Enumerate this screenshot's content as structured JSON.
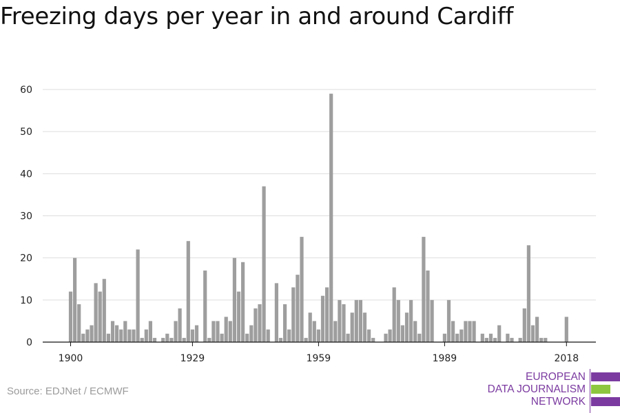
{
  "title": "Freezing days per year in and around Cardiff",
  "source": "Source: EDJNet / ECMWF",
  "logo": {
    "lines": [
      "EUROPEAN",
      "DATA JOURNALISM",
      "NETWORK"
    ],
    "colors": {
      "purple": "#7b3aa0",
      "green": "#8dc63f"
    }
  },
  "colors": {
    "bar": "#9e9e9e",
    "grid": "#dddddd",
    "axis": "#111111",
    "text": "#222222"
  },
  "chart_data": {
    "type": "bar",
    "title": "Freezing days per year in and around Cardiff",
    "xlabel": "",
    "ylabel": "",
    "ylim": [
      0,
      60
    ],
    "yticks": [
      0,
      10,
      20,
      30,
      40,
      50,
      60
    ],
    "xticks": [
      1900,
      1929,
      1959,
      1989,
      2018
    ],
    "grid": true,
    "x": [
      1900,
      1901,
      1902,
      1903,
      1904,
      1905,
      1906,
      1907,
      1908,
      1909,
      1910,
      1911,
      1912,
      1913,
      1914,
      1915,
      1916,
      1917,
      1918,
      1919,
      1920,
      1921,
      1922,
      1923,
      1924,
      1925,
      1926,
      1927,
      1928,
      1929,
      1930,
      1931,
      1932,
      1933,
      1934,
      1935,
      1936,
      1937,
      1938,
      1939,
      1940,
      1941,
      1942,
      1943,
      1944,
      1945,
      1946,
      1947,
      1948,
      1949,
      1950,
      1951,
      1952,
      1953,
      1954,
      1955,
      1956,
      1957,
      1958,
      1959,
      1960,
      1961,
      1962,
      1963,
      1964,
      1965,
      1966,
      1967,
      1968,
      1969,
      1970,
      1971,
      1972,
      1973,
      1974,
      1975,
      1976,
      1977,
      1978,
      1979,
      1980,
      1981,
      1982,
      1983,
      1984,
      1985,
      1986,
      1987,
      1988,
      1989,
      1990,
      1991,
      1992,
      1993,
      1994,
      1995,
      1996,
      1997,
      1998,
      1999,
      2000,
      2001,
      2002,
      2003,
      2004,
      2005,
      2006,
      2007,
      2008,
      2009,
      2010,
      2011,
      2012,
      2013,
      2014,
      2015,
      2016,
      2017,
      2018
    ],
    "values": [
      12,
      20,
      9,
      2,
      3,
      4,
      14,
      12,
      15,
      2,
      5,
      4,
      3,
      5,
      3,
      3,
      22,
      1,
      3,
      5,
      1,
      0,
      1,
      2,
      1,
      5,
      8,
      1,
      24,
      3,
      4,
      0,
      17,
      1,
      5,
      5,
      2,
      6,
      5,
      20,
      12,
      19,
      2,
      4,
      8,
      9,
      37,
      3,
      0,
      14,
      1,
      9,
      3,
      13,
      16,
      25,
      1,
      7,
      5,
      3,
      11,
      13,
      59,
      5,
      10,
      9,
      2,
      7,
      10,
      10,
      7,
      3,
      1,
      0,
      0,
      2,
      3,
      13,
      10,
      4,
      7,
      10,
      5,
      2,
      25,
      17,
      10,
      0,
      0,
      2,
      10,
      5,
      2,
      3,
      5,
      5,
      5,
      0,
      2,
      1,
      2,
      1,
      4,
      0,
      2,
      1,
      0,
      1,
      8,
      23,
      4,
      6,
      1,
      1,
      0,
      0,
      0,
      0,
      6
    ]
  }
}
